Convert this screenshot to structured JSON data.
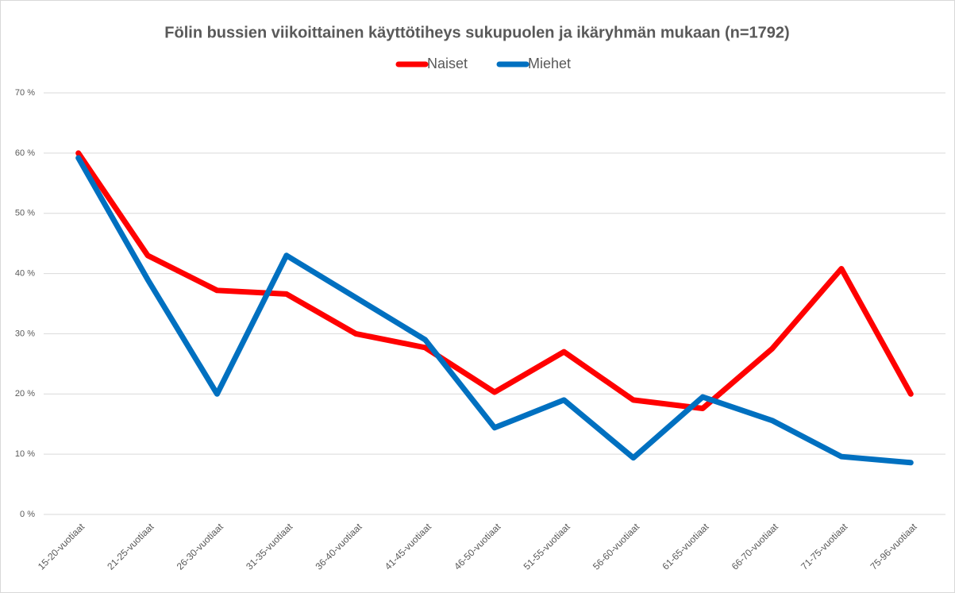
{
  "chart_data": {
    "type": "line",
    "title": "Fölin bussien viikoittainen käyttötiheys sukupuolen ja ikäryhmän mukaan (n=1792)",
    "categories": [
      "15-20-vuotiaat",
      "21-25-vuotiaat",
      "26-30-vuotiaat",
      "31-35-vuotiaat",
      "36-40-vuotiaat",
      "41-45-vuotiaat",
      "46-50-vuotiaat",
      "51-55-vuotiaat",
      "56-60-vuotiaat",
      "61-65-vuotiaat",
      "66-70-vuotiaat",
      "71-75-vuotiaat",
      "75-96-vuotiaat"
    ],
    "series": [
      {
        "name": "Naiset",
        "color": "#ff0000",
        "values": [
          60,
          43,
          37.2,
          36.6,
          30,
          27.7,
          20.3,
          27,
          19,
          17.6,
          27.5,
          40.8,
          20
        ]
      },
      {
        "name": "Miehet",
        "color": "#0070c0",
        "values": [
          59.2,
          39,
          20,
          43,
          36,
          29,
          14.4,
          19,
          9.4,
          19.5,
          15.6,
          9.6,
          8.6
        ]
      }
    ],
    "ylim": [
      0,
      70
    ],
    "yticks": [
      {
        "value": 0,
        "label": "0 %"
      },
      {
        "value": 10,
        "label": "10 %"
      },
      {
        "value": 20,
        "label": "20 %"
      },
      {
        "value": 30,
        "label": "30 %"
      },
      {
        "value": 40,
        "label": "40 %"
      },
      {
        "value": 50,
        "label": "50 %"
      },
      {
        "value": 60,
        "label": "60 %"
      },
      {
        "value": 70,
        "label": "70 %"
      }
    ],
    "grid": true,
    "legend": "top"
  }
}
